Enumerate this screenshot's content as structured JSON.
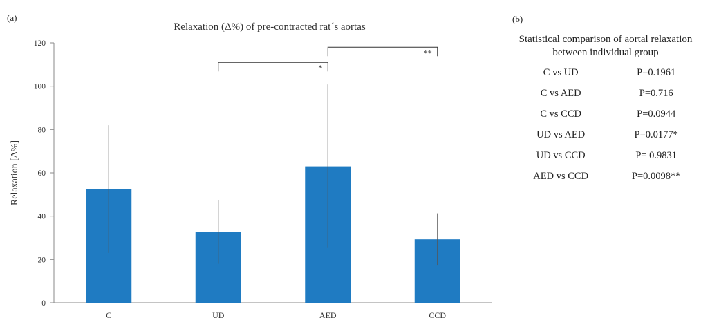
{
  "panel_a_label": "(a)",
  "panel_b_label": "(b)",
  "colors": {
    "bar": "#1f7bc2",
    "axis": "#8a8a8a",
    "bracket": "#333333",
    "error": "#555555"
  },
  "chart_data": {
    "type": "bar",
    "title": "Relaxation (Δ%) of pre-contracted rat´s aortas",
    "xlabel": "",
    "ylabel": "Relaxation [Δ%]",
    "categories": [
      "C",
      "UD",
      "AED",
      "CCD"
    ],
    "values": [
      52.5,
      32.8,
      63.0,
      29.3
    ],
    "error_upper": [
      82.0,
      47.5,
      100.8,
      41.3
    ],
    "error_lower": [
      23.0,
      18.0,
      25.3,
      17.2
    ],
    "ylim": [
      0,
      120
    ],
    "yticks": [
      0,
      20,
      40,
      60,
      80,
      100,
      120
    ],
    "grid": false,
    "legend": "none",
    "significance": [
      {
        "from": "UD",
        "to": "AED",
        "label": "*",
        "level": 111
      },
      {
        "from": "AED",
        "to": "CCD",
        "label": "**",
        "level": 118
      }
    ]
  },
  "stats_table": {
    "caption": "Statistical comparison of aortal relaxation between individual group",
    "rows": [
      {
        "comparison": "C vs UD",
        "p": "P=0.1961"
      },
      {
        "comparison": "C vs AED",
        "p": "P=0.716"
      },
      {
        "comparison": "C vs CCD",
        "p": "P=0.0944"
      },
      {
        "comparison": "UD vs AED",
        "p": "P=0.0177*"
      },
      {
        "comparison": "UD vs CCD",
        "p": "P= 0.9831"
      },
      {
        "comparison": "AED vs CCD",
        "p": "P=0.0098**"
      }
    ]
  }
}
